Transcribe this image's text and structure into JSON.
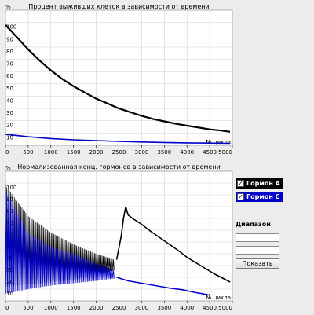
{
  "chart_data": [
    {
      "type": "line",
      "title": "Процент выживших клеток в зависимости от времени",
      "ylabel": "%",
      "xlabel": "№ цикла",
      "x_ticks": [
        0,
        500,
        1000,
        1500,
        2000,
        2500,
        3000,
        3500,
        4000,
        4500,
        5000
      ],
      "y_ticks": [
        10,
        20,
        30,
        40,
        50,
        60,
        70,
        80,
        90,
        100
      ],
      "xlim": [
        0,
        5000
      ],
      "ylim": [
        0,
        110
      ],
      "grid": true,
      "series": [
        {
          "color": "#000000",
          "x": [
            0,
            250,
            500,
            750,
            1000,
            1250,
            1500,
            1750,
            2000,
            2250,
            2500,
            2750,
            3000,
            3250,
            3500,
            3750,
            4000,
            4250,
            4500,
            4750,
            4950
          ],
          "y": [
            98,
            88,
            78,
            69,
            61,
            54,
            48,
            43,
            38,
            34,
            30,
            27,
            24,
            21.5,
            19.5,
            17.5,
            16,
            14.5,
            13,
            12,
            11
          ]
        },
        {
          "color": "#0000c8",
          "x": [
            0,
            500,
            1000,
            1500,
            2000,
            2500,
            3000,
            3500,
            4000,
            4500,
            4950
          ],
          "y": [
            9,
            7,
            5.5,
            4.5,
            3.8,
            3.2,
            2.7,
            2.3,
            2,
            1.8,
            1.6
          ]
        }
      ]
    },
    {
      "type": "line",
      "title": "Нормализованная конц. гормонов в зависимости от времени",
      "ylabel": "%",
      "xlabel": "№ цикла",
      "x_ticks": [
        0,
        500,
        1000,
        1500,
        2000,
        2500,
        3000,
        3500,
        4000,
        4500,
        5000
      ],
      "y_ticks": [
        10,
        20,
        30,
        40,
        50,
        60,
        70,
        80,
        90,
        100
      ],
      "xlim": [
        0,
        5000
      ],
      "ylim": [
        0,
        110
      ],
      "grid": true,
      "series": [
        {
          "name": "Гормон A",
          "color": "#000000",
          "x": [
            2450,
            2550,
            2600,
            2650,
            2700,
            2800,
            3000,
            3200,
            3500,
            3800,
            4000,
            4300,
            4600,
            4950
          ],
          "y": [
            35,
            55,
            70,
            80,
            73,
            70,
            65,
            59,
            51,
            43,
            37,
            30,
            23,
            16
          ],
          "oscillation_envelope": {
            "x": [
              0,
              500,
              1000,
              1500,
              2000,
              2400
            ],
            "upper": [
              98,
              72,
              58,
              48,
              40,
              35
            ],
            "lower": [
              12,
              14,
              16,
              18,
              22,
              26
            ]
          }
        },
        {
          "name": "Гормон C",
          "color": "#0000c8",
          "x": [
            2450,
            2700,
            3000,
            3300,
            3600,
            3900,
            4200,
            4500
          ],
          "y": [
            20,
            17,
            15,
            13,
            11,
            9.5,
            7,
            5
          ],
          "oscillation_envelope": {
            "x": [
              0,
              500,
              1000,
              1500,
              2000,
              2400
            ],
            "upper": [
              94,
              58,
              46,
              40,
              32,
              26
            ],
            "lower": [
              6,
              10,
              13,
              15,
              17,
              19
            ]
          }
        }
      ]
    }
  ],
  "controls": {
    "legend": [
      {
        "label": "Гормон А",
        "checked": true,
        "color": "#000000"
      },
      {
        "label": "Гормон С",
        "checked": true,
        "color": "#0000c8"
      }
    ],
    "range_label": "Диапазон",
    "range_from": "",
    "range_to": "",
    "show_button": "Показать"
  }
}
